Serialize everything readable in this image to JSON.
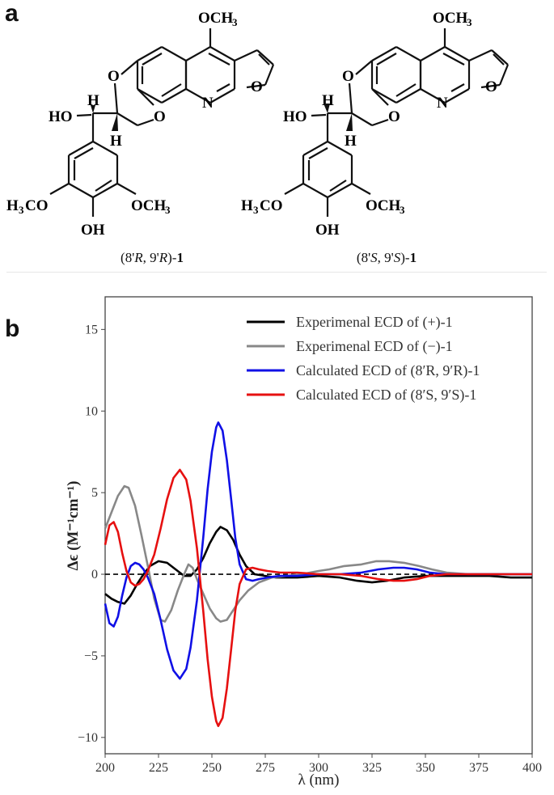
{
  "panels": {
    "a": "a",
    "b": "b"
  },
  "molecules": [
    {
      "caption_prefix": "(8'",
      "caption_conf1": "R",
      "caption_mid": ", 9'",
      "caption_conf2": "R",
      "caption_suffix": ")-",
      "caption_compound": "1",
      "labels": {
        "ome_top": "OCH",
        "sub3": "3",
        "o1": "O",
        "o2": "O",
        "n": "N",
        "o_furan": "O",
        "ho": "HO",
        "h_upper": "H",
        "h_lower": "H",
        "h3co": "H",
        "h3co_sub": "3",
        "h3co_rest": "CO",
        "och3_right": "OCH",
        "och3_sub": "3",
        "oh": "OH"
      }
    },
    {
      "caption_prefix": "(8'",
      "caption_conf1": "S",
      "caption_mid": ", 9'",
      "caption_conf2": "S",
      "caption_suffix": ")-",
      "caption_compound": "1",
      "labels": {
        "ome_top": "OCH",
        "sub3": "3",
        "o1": "O",
        "o2": "O",
        "n": "N",
        "o_furan": "O",
        "ho": "HO",
        "h_upper": "H",
        "h_lower": "H",
        "h3co": "H",
        "h3co_sub": "3",
        "h3co_rest": "CO",
        "och3_right": "OCH",
        "och3_sub": "3",
        "oh": "OH"
      }
    }
  ],
  "chart_data": {
    "type": "line",
    "xlabel": "λ (nm)",
    "ylabel": "Δϵ (M⁻¹cm⁻¹)",
    "xlim": [
      200,
      400
    ],
    "ylim": [
      -11,
      17
    ],
    "xticks": [
      200,
      225,
      250,
      275,
      300,
      325,
      350,
      375,
      400
    ],
    "yticks": [
      -10,
      -5,
      0,
      5,
      10,
      15
    ],
    "legend_position": "top-right",
    "zero_line": "dashed",
    "series": [
      {
        "name": "Experimenal ECD of (+)-1",
        "color": "#000000",
        "points": [
          [
            200,
            -1.2
          ],
          [
            203,
            -1.5
          ],
          [
            206,
            -1.7
          ],
          [
            209,
            -1.8
          ],
          [
            212,
            -1.3
          ],
          [
            215,
            -0.6
          ],
          [
            218,
            0.0
          ],
          [
            221,
            0.5
          ],
          [
            225,
            0.8
          ],
          [
            229,
            0.7
          ],
          [
            233,
            0.3
          ],
          [
            237,
            -0.1
          ],
          [
            240,
            -0.1
          ],
          [
            243,
            0.3
          ],
          [
            246,
            1.0
          ],
          [
            249,
            1.9
          ],
          [
            252,
            2.6
          ],
          [
            254,
            2.9
          ],
          [
            257,
            2.7
          ],
          [
            260,
            2.1
          ],
          [
            263,
            1.2
          ],
          [
            266,
            0.5
          ],
          [
            270,
            0.0
          ],
          [
            275,
            -0.1
          ],
          [
            280,
            -0.2
          ],
          [
            290,
            -0.2
          ],
          [
            300,
            -0.1
          ],
          [
            310,
            -0.2
          ],
          [
            318,
            -0.4
          ],
          [
            325,
            -0.5
          ],
          [
            332,
            -0.4
          ],
          [
            340,
            -0.2
          ],
          [
            350,
            -0.1
          ],
          [
            360,
            -0.1
          ],
          [
            370,
            -0.1
          ],
          [
            380,
            -0.1
          ],
          [
            390,
            -0.2
          ],
          [
            400,
            -0.2
          ]
        ]
      },
      {
        "name": "Experimenal ECD of (−)-1",
        "color": "#888888",
        "points": [
          [
            200,
            2.8
          ],
          [
            203,
            3.8
          ],
          [
            206,
            4.8
          ],
          [
            209,
            5.4
          ],
          [
            211,
            5.3
          ],
          [
            214,
            4.2
          ],
          [
            217,
            2.4
          ],
          [
            220,
            0.5
          ],
          [
            223,
            -1.5
          ],
          [
            226,
            -2.8
          ],
          [
            228,
            -2.9
          ],
          [
            231,
            -2.2
          ],
          [
            234,
            -1.0
          ],
          [
            237,
            0.0
          ],
          [
            239,
            0.6
          ],
          [
            241,
            0.4
          ],
          [
            243,
            -0.3
          ],
          [
            246,
            -1.2
          ],
          [
            249,
            -2.1
          ],
          [
            252,
            -2.7
          ],
          [
            254,
            -2.9
          ],
          [
            257,
            -2.8
          ],
          [
            260,
            -2.2
          ],
          [
            263,
            -1.6
          ],
          [
            267,
            -1.0
          ],
          [
            272,
            -0.5
          ],
          [
            278,
            -0.2
          ],
          [
            285,
            -0.1
          ],
          [
            292,
            0.0
          ],
          [
            300,
            0.2
          ],
          [
            305,
            0.3
          ],
          [
            312,
            0.5
          ],
          [
            320,
            0.6
          ],
          [
            327,
            0.8
          ],
          [
            333,
            0.8
          ],
          [
            340,
            0.7
          ],
          [
            347,
            0.5
          ],
          [
            353,
            0.3
          ],
          [
            360,
            0.1
          ],
          [
            370,
            0.0
          ],
          [
            380,
            0.0
          ],
          [
            390,
            0.0
          ],
          [
            400,
            0.0
          ]
        ]
      },
      {
        "name": "Calculated ECD of (8′R, 9′R)-1",
        "color": "#1010e6",
        "points": [
          [
            200,
            -1.8
          ],
          [
            202,
            -3.0
          ],
          [
            204,
            -3.2
          ],
          [
            206,
            -2.6
          ],
          [
            208,
            -1.3
          ],
          [
            210,
            -0.2
          ],
          [
            212,
            0.5
          ],
          [
            214,
            0.7
          ],
          [
            216,
            0.6
          ],
          [
            218,
            0.3
          ],
          [
            220,
            -0.2
          ],
          [
            223,
            -1.2
          ],
          [
            226,
            -2.8
          ],
          [
            229,
            -4.6
          ],
          [
            232,
            -5.9
          ],
          [
            235,
            -6.4
          ],
          [
            238,
            -5.8
          ],
          [
            240,
            -4.5
          ],
          [
            243,
            -1.6
          ],
          [
            246,
            2.3
          ],
          [
            248,
            5.2
          ],
          [
            250,
            7.5
          ],
          [
            252,
            9.0
          ],
          [
            253,
            9.3
          ],
          [
            255,
            8.8
          ],
          [
            257,
            7.0
          ],
          [
            259,
            4.6
          ],
          [
            261,
            2.2
          ],
          [
            263,
            0.6
          ],
          [
            266,
            -0.3
          ],
          [
            269,
            -0.4
          ],
          [
            272,
            -0.3
          ],
          [
            276,
            -0.2
          ],
          [
            282,
            -0.1
          ],
          [
            290,
            -0.1
          ],
          [
            300,
            0.0
          ],
          [
            310,
            0.0
          ],
          [
            320,
            0.1
          ],
          [
            328,
            0.3
          ],
          [
            335,
            0.4
          ],
          [
            340,
            0.4
          ],
          [
            346,
            0.3
          ],
          [
            352,
            0.1
          ],
          [
            360,
            0.0
          ],
          [
            380,
            0.0
          ],
          [
            400,
            0.0
          ]
        ]
      },
      {
        "name": "Calculated ECD of (8′S, 9′S)-1",
        "color": "#e61010",
        "points": [
          [
            200,
            1.8
          ],
          [
            202,
            3.0
          ],
          [
            204,
            3.2
          ],
          [
            206,
            2.6
          ],
          [
            208,
            1.3
          ],
          [
            210,
            0.2
          ],
          [
            212,
            -0.5
          ],
          [
            214,
            -0.7
          ],
          [
            216,
            -0.6
          ],
          [
            218,
            -0.3
          ],
          [
            220,
            0.2
          ],
          [
            223,
            1.2
          ],
          [
            226,
            2.8
          ],
          [
            229,
            4.6
          ],
          [
            232,
            5.9
          ],
          [
            235,
            6.4
          ],
          [
            238,
            5.8
          ],
          [
            240,
            4.5
          ],
          [
            243,
            1.6
          ],
          [
            246,
            -2.3
          ],
          [
            248,
            -5.2
          ],
          [
            250,
            -7.5
          ],
          [
            252,
            -9.0
          ],
          [
            253,
            -9.3
          ],
          [
            255,
            -8.8
          ],
          [
            257,
            -7.0
          ],
          [
            259,
            -4.6
          ],
          [
            261,
            -2.2
          ],
          [
            263,
            -0.6
          ],
          [
            266,
            0.3
          ],
          [
            269,
            0.4
          ],
          [
            272,
            0.3
          ],
          [
            276,
            0.2
          ],
          [
            282,
            0.1
          ],
          [
            290,
            0.1
          ],
          [
            300,
            0.0
          ],
          [
            310,
            0.0
          ],
          [
            320,
            -0.1
          ],
          [
            328,
            -0.3
          ],
          [
            335,
            -0.4
          ],
          [
            340,
            -0.4
          ],
          [
            346,
            -0.3
          ],
          [
            352,
            -0.1
          ],
          [
            360,
            0.0
          ],
          [
            380,
            0.0
          ],
          [
            400,
            0.0
          ]
        ]
      }
    ]
  }
}
